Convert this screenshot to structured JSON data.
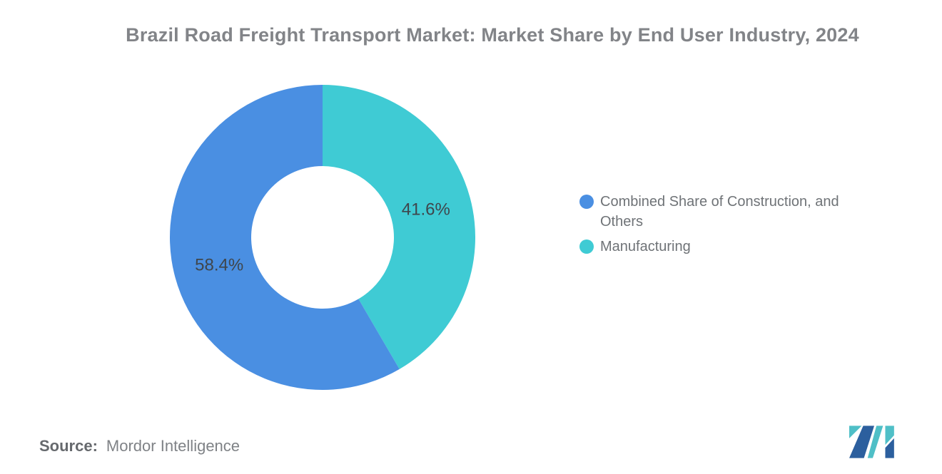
{
  "chart_data": {
    "type": "pie",
    "donut": true,
    "title": "Brazil Road Freight Transport Market: Market Share by End User Industry, 2024",
    "start_angle_deg": 0,
    "direction": "clockwise",
    "inner_radius_ratio": 0.467,
    "legend_position": "right",
    "slices": [
      {
        "label": "Manufacturing",
        "value": 41.6,
        "data_label": "41.6%",
        "color": "#3FCBD4"
      },
      {
        "label": "Combined Share of Construction, and Others",
        "value": 58.4,
        "data_label": "58.4%",
        "color": "#4A8FE2"
      }
    ],
    "data_label_color": "#3F464C"
  },
  "legend": {
    "items": [
      {
        "label": "Combined Share of Construction, and Others",
        "color": "#4A8FE2"
      },
      {
        "label": "Manufacturing",
        "color": "#3FCBD4"
      }
    ]
  },
  "source": {
    "label": "Source:",
    "value": "Mordor Intelligence"
  },
  "logo": {
    "name": "mordor-intelligence-logo",
    "navy": "#2C5F9E",
    "teal": "#4FBFC7"
  }
}
